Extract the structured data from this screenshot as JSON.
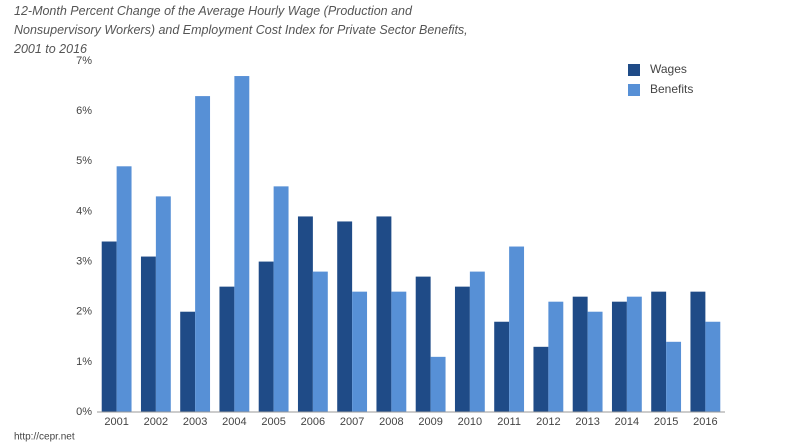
{
  "chart_data": {
    "type": "grouped_bar",
    "title": "12-Month Percent Change of the Average Hourly Wage (Production and Nonsupervisory Workers) and Employment Cost Index for Private Sector Benefits, 2001 to 2016",
    "categories": [
      "2001",
      "2002",
      "2003",
      "2004",
      "2005",
      "2006",
      "2007",
      "2008",
      "2009",
      "2010",
      "2011",
      "2012",
      "2013",
      "2014",
      "2015",
      "2016"
    ],
    "series": [
      {
        "name": "Wages",
        "color": "#1f4b87",
        "values": [
          3.4,
          3.1,
          2.0,
          2.5,
          3.0,
          3.9,
          3.8,
          3.9,
          2.7,
          2.5,
          1.8,
          1.3,
          2.3,
          2.2,
          2.4,
          2.4
        ]
      },
      {
        "name": "Benefits",
        "color": "#5790d6",
        "values": [
          4.9,
          4.3,
          6.3,
          6.7,
          4.5,
          2.8,
          2.4,
          2.4,
          1.1,
          2.8,
          3.3,
          2.2,
          2.0,
          2.3,
          1.4,
          1.8
        ]
      }
    ],
    "ylim": [
      0,
      7
    ],
    "yticks": [
      {
        "value": 0,
        "label": "0%"
      },
      {
        "value": 1,
        "label": "1%"
      },
      {
        "value": 2,
        "label": "2%"
      },
      {
        "value": 3,
        "label": "3%"
      },
      {
        "value": 4,
        "label": "4%"
      },
      {
        "value": 5,
        "label": "5%"
      },
      {
        "value": 6,
        "label": "6%"
      },
      {
        "value": 7,
        "label": "7%"
      }
    ],
    "grid": false,
    "legend": "top-right",
    "source": "http://cepr.net"
  }
}
